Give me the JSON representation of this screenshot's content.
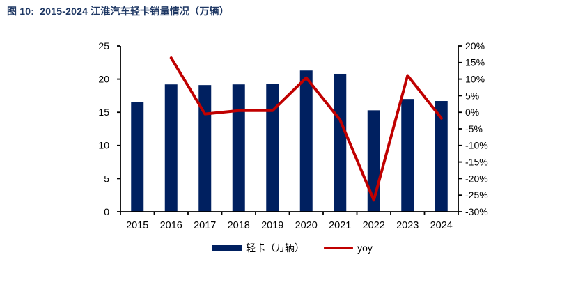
{
  "title": "图 10:  2015-2024 江淮汽车轻卡销量情况（万辆）",
  "colors": {
    "bar": "#002060",
    "line": "#c00000",
    "title": "#1f3864",
    "axis": "#000000",
    "tick_label": "#000000"
  },
  "chart_data": {
    "type": "bar",
    "subtype": "bar+line combo, dual y-axis",
    "categories": [
      "2015",
      "2016",
      "2017",
      "2018",
      "2019",
      "2020",
      "2021",
      "2022",
      "2023",
      "2024"
    ],
    "series": [
      {
        "name": "轻卡（万辆）",
        "type": "bar",
        "axis": "left",
        "color": "#002060",
        "values": [
          16.5,
          19.2,
          19.1,
          19.2,
          19.3,
          21.3,
          20.8,
          15.3,
          17.0,
          16.7
        ]
      },
      {
        "name": "yoy",
        "type": "line",
        "axis": "right",
        "color": "#c00000",
        "unit": "%",
        "values": [
          null,
          16.4,
          -0.5,
          0.5,
          0.5,
          10.4,
          -2.3,
          -26.5,
          11.1,
          -1.8
        ]
      }
    ],
    "left_axis": {
      "min": 0,
      "max": 25,
      "step": 5,
      "tick_labels": [
        "0",
        "5",
        "10",
        "15",
        "20",
        "25"
      ]
    },
    "right_axis": {
      "min": -30,
      "max": 20,
      "step": 5,
      "tick_labels": [
        "20%",
        "15%",
        "10%",
        "5%",
        "0%",
        "-5%",
        "-10%",
        "-15%",
        "-20%",
        "-25%",
        "-30%"
      ]
    },
    "grid": false,
    "legend_position": "bottom",
    "title": "图 10:  2015-2024 江淮汽车轻卡销量情况（万辆）"
  },
  "legend": {
    "items": [
      {
        "label": "轻卡（万辆）",
        "swatch": "bar"
      },
      {
        "label": "yoy",
        "swatch": "line"
      }
    ]
  }
}
